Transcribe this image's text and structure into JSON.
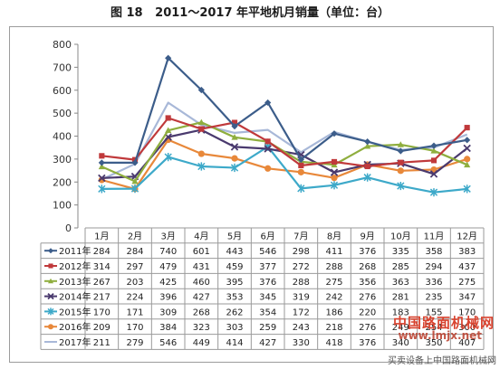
{
  "header": {
    "figure_label": "图 18",
    "title": "2011～2017 年平地机月销量（单位：台）"
  },
  "watermark": {
    "site_name": "中国路面机械网",
    "site_domain": "www.lmjx.net",
    "footer_text": "买卖设备上中国路面机械网"
  },
  "colors": {
    "2011年": "#3c5d8a",
    "2012年": "#c0393b",
    "2013年": "#8fae3e",
    "2014年": "#4a3a6e",
    "2015年": "#3da9c9",
    "2016年": "#e8883a",
    "2017年": "#a8b8d8"
  },
  "chart_data": {
    "type": "line",
    "title": "2011～2017 年平地机月销量（单位：台）",
    "xlabel": "",
    "ylabel": "",
    "ylim": [
      0,
      800
    ],
    "yticks": [
      0,
      100,
      200,
      300,
      400,
      500,
      600,
      700,
      800
    ],
    "grid": false,
    "legend": "data-table",
    "categories": [
      "1月",
      "2月",
      "3月",
      "4月",
      "5月",
      "6月",
      "7月",
      "8月",
      "9月",
      "10月",
      "11月",
      "12月"
    ],
    "series": [
      {
        "name": "2011年",
        "marker": "diamond",
        "values": [
          284,
          284,
          740,
          601,
          443,
          546,
          298,
          411,
          376,
          335,
          358,
          383
        ]
      },
      {
        "name": "2012年",
        "marker": "square",
        "values": [
          314,
          297,
          479,
          431,
          459,
          377,
          272,
          288,
          268,
          285,
          294,
          437
        ]
      },
      {
        "name": "2013年",
        "marker": "triangle",
        "values": [
          267,
          203,
          425,
          460,
          395,
          376,
          288,
          275,
          356,
          363,
          336,
          275
        ]
      },
      {
        "name": "2014年",
        "marker": "x",
        "values": [
          217,
          224,
          396,
          427,
          353,
          345,
          319,
          242,
          276,
          281,
          235,
          347
        ]
      },
      {
        "name": "2015年",
        "marker": "star",
        "values": [
          170,
          171,
          309,
          268,
          262,
          354,
          172,
          186,
          220,
          183,
          155,
          170
        ]
      },
      {
        "name": "2016年",
        "marker": "circle",
        "values": [
          209,
          170,
          384,
          323,
          303,
          259,
          243,
          218,
          276,
          249,
          254,
          300
        ]
      },
      {
        "name": "2017年",
        "marker": "dash",
        "values": [
          211,
          279,
          546,
          449,
          414,
          427,
          330,
          418,
          376,
          340,
          350,
          407
        ]
      }
    ]
  }
}
